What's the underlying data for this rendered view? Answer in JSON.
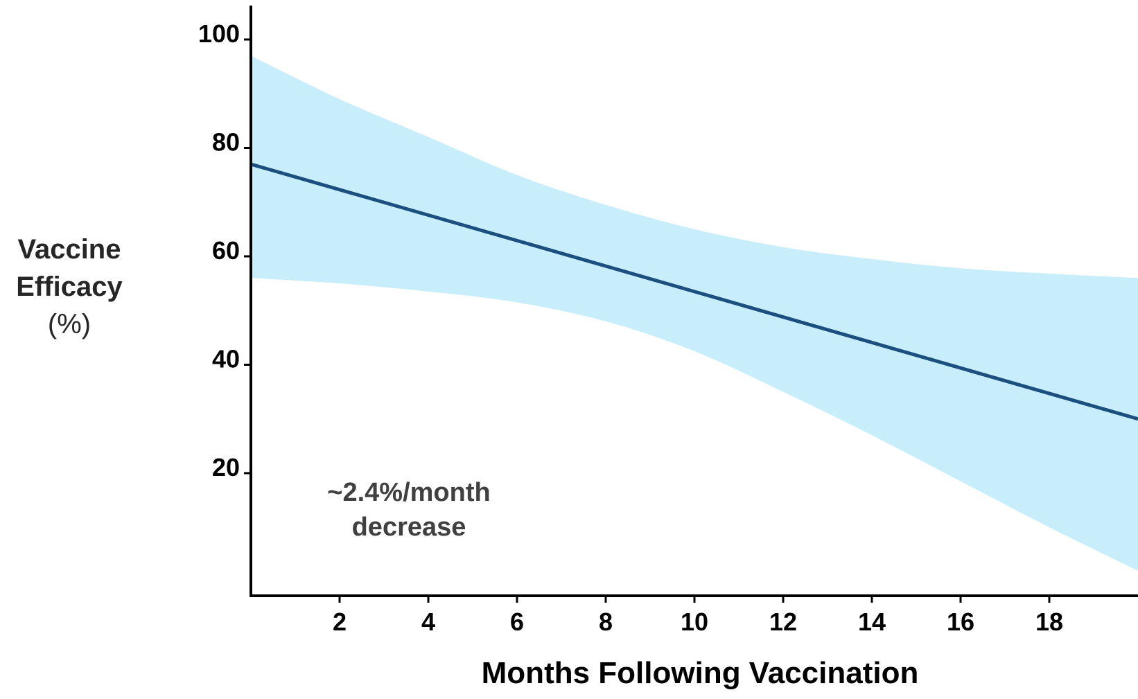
{
  "chart_data": {
    "type": "line",
    "title": "",
    "xlabel": "Months Following Vaccination",
    "ylabel": [
      "Vaccine",
      "Efficacy",
      "(%)"
    ],
    "x_ticks": [
      2,
      4,
      6,
      8,
      10,
      12,
      14,
      16,
      18
    ],
    "y_ticks": [
      20,
      40,
      60,
      80,
      100
    ],
    "xlim": [
      0,
      20
    ],
    "ylim": [
      -2,
      107
    ],
    "grid": false,
    "legend": "none",
    "annotation": [
      "~2.4%/month",
      "decrease"
    ],
    "series": [
      {
        "type": "line",
        "color": "#1b4f7f",
        "x": [
          0,
          20
        ],
        "y": [
          77,
          30
        ]
      },
      {
        "type": "band",
        "color": "#c9eefb",
        "x": [
          0,
          2,
          4,
          6,
          8,
          10,
          12,
          14,
          16,
          18,
          20
        ],
        "upper": [
          97,
          89,
          82,
          75,
          69.5,
          65,
          61.7,
          59.5,
          57.8,
          56.8,
          56
        ],
        "lower": [
          56,
          55,
          53.5,
          51.5,
          48,
          42.5,
          35,
          27,
          18.5,
          10,
          2
        ]
      }
    ]
  }
}
